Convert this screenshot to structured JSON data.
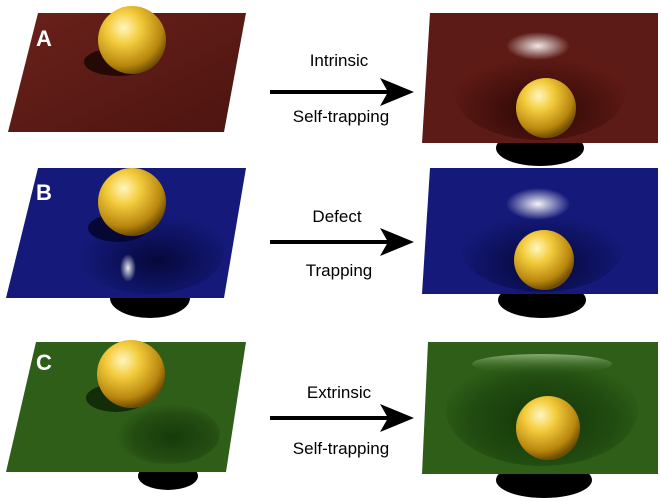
{
  "colors": {
    "row_a": "#5c1b16",
    "row_b": "#151a7a",
    "row_c": "#2e5e18",
    "ball": "#e0b628",
    "arrow": "#000000"
  },
  "rows": [
    {
      "letter": "A",
      "top_label": "Intrinsic",
      "bottom_label": "Self-trapping",
      "color_name": "dark-red",
      "left_state": "ball on flat surface",
      "right_state": "ball in funnel well"
    },
    {
      "letter": "B",
      "top_label": "Defect",
      "bottom_label": "Trapping",
      "color_name": "dark-blue",
      "left_state": "ball beside pre-existing well",
      "right_state": "ball in funnel well"
    },
    {
      "letter": "C",
      "top_label": "Extrinsic",
      "bottom_label": "Self-trapping",
      "color_name": "green",
      "left_state": "ball beside shallow defect well",
      "right_state": "ball in wide deep well"
    }
  ]
}
